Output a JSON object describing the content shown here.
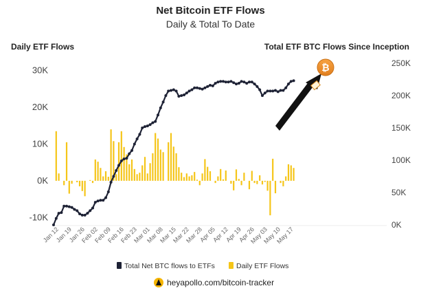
{
  "page": {
    "title": "Net Bitcoin ETF Flows",
    "subtitle": "Daily & Total To Date",
    "footer_text": "heyapollo.com/bitcoin-tracker"
  },
  "chart_data": {
    "type": "bar",
    "title": "Net Bitcoin ETF Flows",
    "subtitle": "Daily & Total To Date",
    "left_axis_title": "Daily ETF Flows",
    "right_axis_title": "Total ETF BTC Flows Since Inception",
    "left_ylim": [
      -12000,
      32000
    ],
    "right_ylim": [
      0,
      250000
    ],
    "left_ticks": [
      {
        "value": -10000,
        "label": "-10K"
      },
      {
        "value": 0,
        "label": "0K"
      },
      {
        "value": 10000,
        "label": "10K"
      },
      {
        "value": 20000,
        "label": "20K"
      },
      {
        "value": 30000,
        "label": "30K"
      }
    ],
    "right_ticks": [
      {
        "value": 0,
        "label": "0K"
      },
      {
        "value": 50000,
        "label": "50K"
      },
      {
        "value": 100000,
        "label": "100K"
      },
      {
        "value": 150000,
        "label": "150K"
      },
      {
        "value": 200000,
        "label": "200K"
      },
      {
        "value": 250000,
        "label": "250K"
      }
    ],
    "x_ticks": [
      {
        "index": 2,
        "label": "Jan 12"
      },
      {
        "index": 7,
        "label": "Jan 19"
      },
      {
        "index": 12,
        "label": "Jan 26"
      },
      {
        "index": 17,
        "label": "Feb 02"
      },
      {
        "index": 22,
        "label": "Feb 09"
      },
      {
        "index": 27,
        "label": "Feb 16"
      },
      {
        "index": 32,
        "label": "Feb 23"
      },
      {
        "index": 37,
        "label": "Mar 01"
      },
      {
        "index": 42,
        "label": "Mar 08"
      },
      {
        "index": 47,
        "label": "Mar 15"
      },
      {
        "index": 52,
        "label": "Mar 22"
      },
      {
        "index": 57,
        "label": "Mar 28"
      },
      {
        "index": 62,
        "label": "Apr 05"
      },
      {
        "index": 67,
        "label": "Apr 12"
      },
      {
        "index": 72,
        "label": "Apr 19"
      },
      {
        "index": 77,
        "label": "Apr 26"
      },
      {
        "index": 82,
        "label": "May 03"
      },
      {
        "index": 87,
        "label": "May 10"
      },
      {
        "index": 92,
        "label": "May 17"
      }
    ],
    "legend": [
      {
        "name": "Total Net BTC flows to ETFs",
        "color": "#1e2235"
      },
      {
        "name": "Daily ETF Flows",
        "color": "#f5c518"
      }
    ],
    "series": [
      {
        "name": "Daily ETF Flows",
        "axis": "left",
        "color": "#f5c518",
        "x": [
          0,
          1,
          2,
          3,
          4,
          5,
          6,
          7,
          8,
          9,
          10,
          11,
          12,
          13,
          14,
          15,
          16,
          17,
          18,
          19,
          20,
          21,
          22,
          23,
          24,
          25,
          26,
          27,
          28,
          29,
          30,
          31,
          32,
          33,
          34,
          35,
          36,
          37,
          38,
          39,
          40,
          41,
          42,
          43,
          44,
          45,
          46,
          47,
          48,
          49,
          50,
          51,
          52,
          53,
          54,
          55,
          56,
          57,
          58,
          59,
          60,
          61,
          62,
          63,
          64,
          65,
          66,
          67,
          68,
          69,
          70,
          71,
          72,
          73,
          74,
          75,
          76,
          77,
          78,
          79,
          80,
          81,
          82,
          83,
          84,
          85,
          86,
          87,
          88,
          89,
          90,
          91,
          92
        ],
        "values": [
          0,
          13500,
          2000,
          0,
          -1200,
          10500,
          -3500,
          -800,
          0,
          -400,
          -1500,
          -2800,
          -4200,
          0,
          200,
          -600,
          5800,
          5200,
          3500,
          1200,
          2600,
          1100,
          14000,
          10800,
          1800,
          10500,
          13500,
          9200,
          7200,
          4500,
          5800,
          3200,
          1800,
          2200,
          4200,
          6500,
          2000,
          4800,
          7500,
          13000,
          11500,
          8500,
          7800,
          0,
          10500,
          13000,
          9300,
          7500,
          3700,
          2200,
          1000,
          2000,
          1200,
          1500,
          2400,
          300,
          -1200,
          2000,
          5900,
          3800,
          2600,
          0,
          -600,
          1200,
          3200,
          400,
          2800,
          0,
          -800,
          -2600,
          3100,
          500,
          -1200,
          2200,
          0,
          -2300,
          2700,
          -600,
          -900,
          1500,
          -1000,
          -300,
          -2700,
          -9400,
          6000,
          -3400,
          0,
          -600,
          -1500,
          1200,
          4500,
          4200,
          3500
        ]
      },
      {
        "name": "Total Net BTC flows to ETFs",
        "axis": "right",
        "color": "#1e2235",
        "x": [
          0,
          1,
          2,
          3,
          4,
          5,
          6,
          7,
          8,
          9,
          10,
          11,
          12,
          13,
          14,
          15,
          16,
          17,
          18,
          19,
          20,
          21,
          22,
          23,
          24,
          25,
          26,
          27,
          28,
          29,
          30,
          31,
          32,
          33,
          34,
          35,
          36,
          37,
          38,
          39,
          40,
          41,
          42,
          43,
          44,
          45,
          46,
          47,
          48,
          49,
          50,
          51,
          52,
          53,
          54,
          55,
          56,
          57,
          58,
          59,
          60,
          61,
          62,
          63,
          64,
          65,
          66,
          67,
          68,
          69,
          70,
          71,
          72,
          73,
          74,
          75,
          76,
          77,
          78,
          79,
          80,
          81,
          82,
          83,
          84,
          85,
          86,
          87,
          88,
          89,
          90,
          91,
          92
        ],
        "values": [
          0,
          10000,
          18000,
          19000,
          29000,
          29000,
          28000,
          27000,
          24000,
          22000,
          17000,
          15000,
          15000,
          18000,
          22000,
          26000,
          35000,
          37000,
          38000,
          38000,
          42000,
          51000,
          66000,
          75000,
          84000,
          92000,
          99000,
          102000,
          103000,
          110000,
          115000,
          125000,
          133000,
          140000,
          150000,
          152000,
          153000,
          155000,
          158000,
          160000,
          170000,
          181000,
          190000,
          200000,
          207000,
          208000,
          209000,
          207000,
          199000,
          200000,
          201000,
          204000,
          207000,
          209000,
          212000,
          212000,
          211000,
          210000,
          212000,
          214000,
          216000,
          215000,
          219000,
          221000,
          222000,
          222000,
          221000,
          221000,
          222000,
          220000,
          218000,
          219000,
          222000,
          221000,
          219000,
          221000,
          221000,
          218000,
          214000,
          209000,
          200000,
          204000,
          207000,
          207000,
          207000,
          208000,
          206000,
          208000,
          208000,
          212000,
          218000,
          222000,
          223000
        ]
      }
    ]
  }
}
